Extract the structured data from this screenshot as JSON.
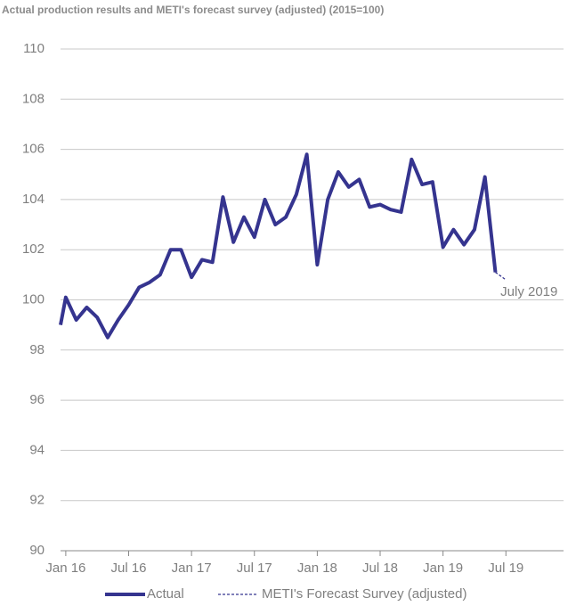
{
  "chart_data": {
    "type": "line",
    "title": "Actual production results and METI's forecast survey (adjusted) (2015=100)",
    "xlim": [
      -0.5,
      47.5
    ],
    "xticks": [
      {
        "value": 0,
        "label": "Jan 16"
      },
      {
        "value": 6,
        "label": "Jul 16"
      },
      {
        "value": 12,
        "label": "Jan 17"
      },
      {
        "value": 18,
        "label": "Jul 17"
      },
      {
        "value": 24,
        "label": "Jan 18"
      },
      {
        "value": 30,
        "label": "Jul 18"
      },
      {
        "value": 36,
        "label": "Jan 19"
      },
      {
        "value": 42,
        "label": "Jul 19"
      }
    ],
    "ylim": [
      90,
      110
    ],
    "yticks": [
      90,
      92,
      94,
      96,
      98,
      100,
      102,
      104,
      106,
      108,
      110
    ],
    "grid": true,
    "series": [
      {
        "name": "Actual",
        "color": "#35348f",
        "line_style": "solid",
        "x": [
          -0.5,
          0,
          1,
          2,
          3,
          4,
          5,
          6,
          7,
          8,
          9,
          10,
          11,
          12,
          13,
          14,
          15,
          16,
          17,
          18,
          19,
          20,
          21,
          22,
          23,
          24,
          25,
          26,
          27,
          28,
          29,
          30,
          31,
          32,
          33,
          34,
          35,
          36,
          37,
          38,
          39,
          40,
          41
        ],
        "values": [
          99.0,
          100.1,
          99.2,
          99.7,
          99.3,
          98.5,
          99.2,
          99.8,
          100.5,
          100.7,
          101.0,
          102.0,
          102.0,
          100.9,
          101.6,
          101.5,
          104.1,
          102.3,
          103.3,
          102.5,
          104.0,
          103.0,
          103.3,
          104.2,
          105.8,
          101.4,
          104.0,
          105.1,
          104.5,
          104.8,
          103.7,
          103.8,
          103.6,
          103.5,
          105.6,
          104.6,
          104.7,
          102.1,
          102.8,
          102.2,
          102.8,
          104.9,
          101.1
        ]
      },
      {
        "name": "METI's Forecast Survey (adjusted)",
        "color": "#35348f",
        "line_style": "dashed",
        "x": [
          41,
          42
        ],
        "values": [
          101.1,
          100.8
        ]
      }
    ],
    "annotations": [
      {
        "text": "July 2019",
        "x": 42,
        "y": 100.8
      }
    ],
    "legend": "bottom"
  }
}
